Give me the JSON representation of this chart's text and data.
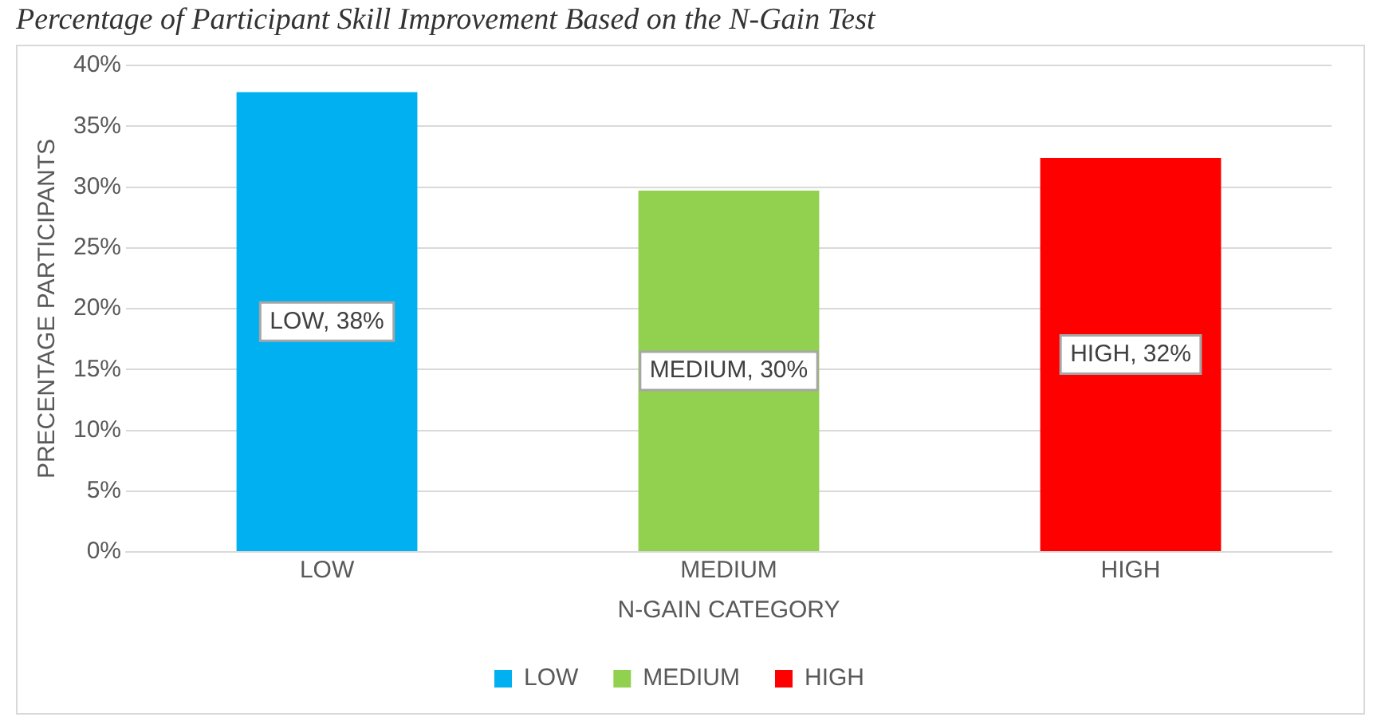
{
  "chart_data": {
    "type": "bar",
    "title": "Percentage of Participant Skill Improvement Based on the N-Gain Test",
    "xlabel": "N-GAIN CATEGORY",
    "ylabel": "PRECENTAGE PARTICIPANTS",
    "categories": [
      "LOW",
      "MEDIUM",
      "HIGH"
    ],
    "series": [
      {
        "name": "LOW",
        "color": "#00b0f0",
        "values": [
          37.8,
          null,
          null
        ],
        "value_labels": [
          "LOW, 38%",
          null,
          null
        ]
      },
      {
        "name": "MEDIUM",
        "color": "#92d050",
        "values": [
          null,
          29.7,
          null
        ],
        "value_labels": [
          null,
          "MEDIUM, 30%",
          null
        ]
      },
      {
        "name": "HIGH",
        "color": "#ff0000",
        "values": [
          null,
          null,
          32.4
        ],
        "value_labels": [
          null,
          null,
          "HIGH, 32%"
        ]
      }
    ],
    "ylim": [
      0,
      40
    ],
    "yticks": [
      {
        "value": 0,
        "label": "0%"
      },
      {
        "value": 5,
        "label": "5%"
      },
      {
        "value": 10,
        "label": "10%"
      },
      {
        "value": 15,
        "label": "15%"
      },
      {
        "value": 20,
        "label": "20%"
      },
      {
        "value": 25,
        "label": "25%"
      },
      {
        "value": 30,
        "label": "30%"
      },
      {
        "value": 35,
        "label": "35%"
      },
      {
        "value": 40,
        "label": "40%"
      }
    ],
    "grid": "y",
    "legend": "bottom"
  }
}
